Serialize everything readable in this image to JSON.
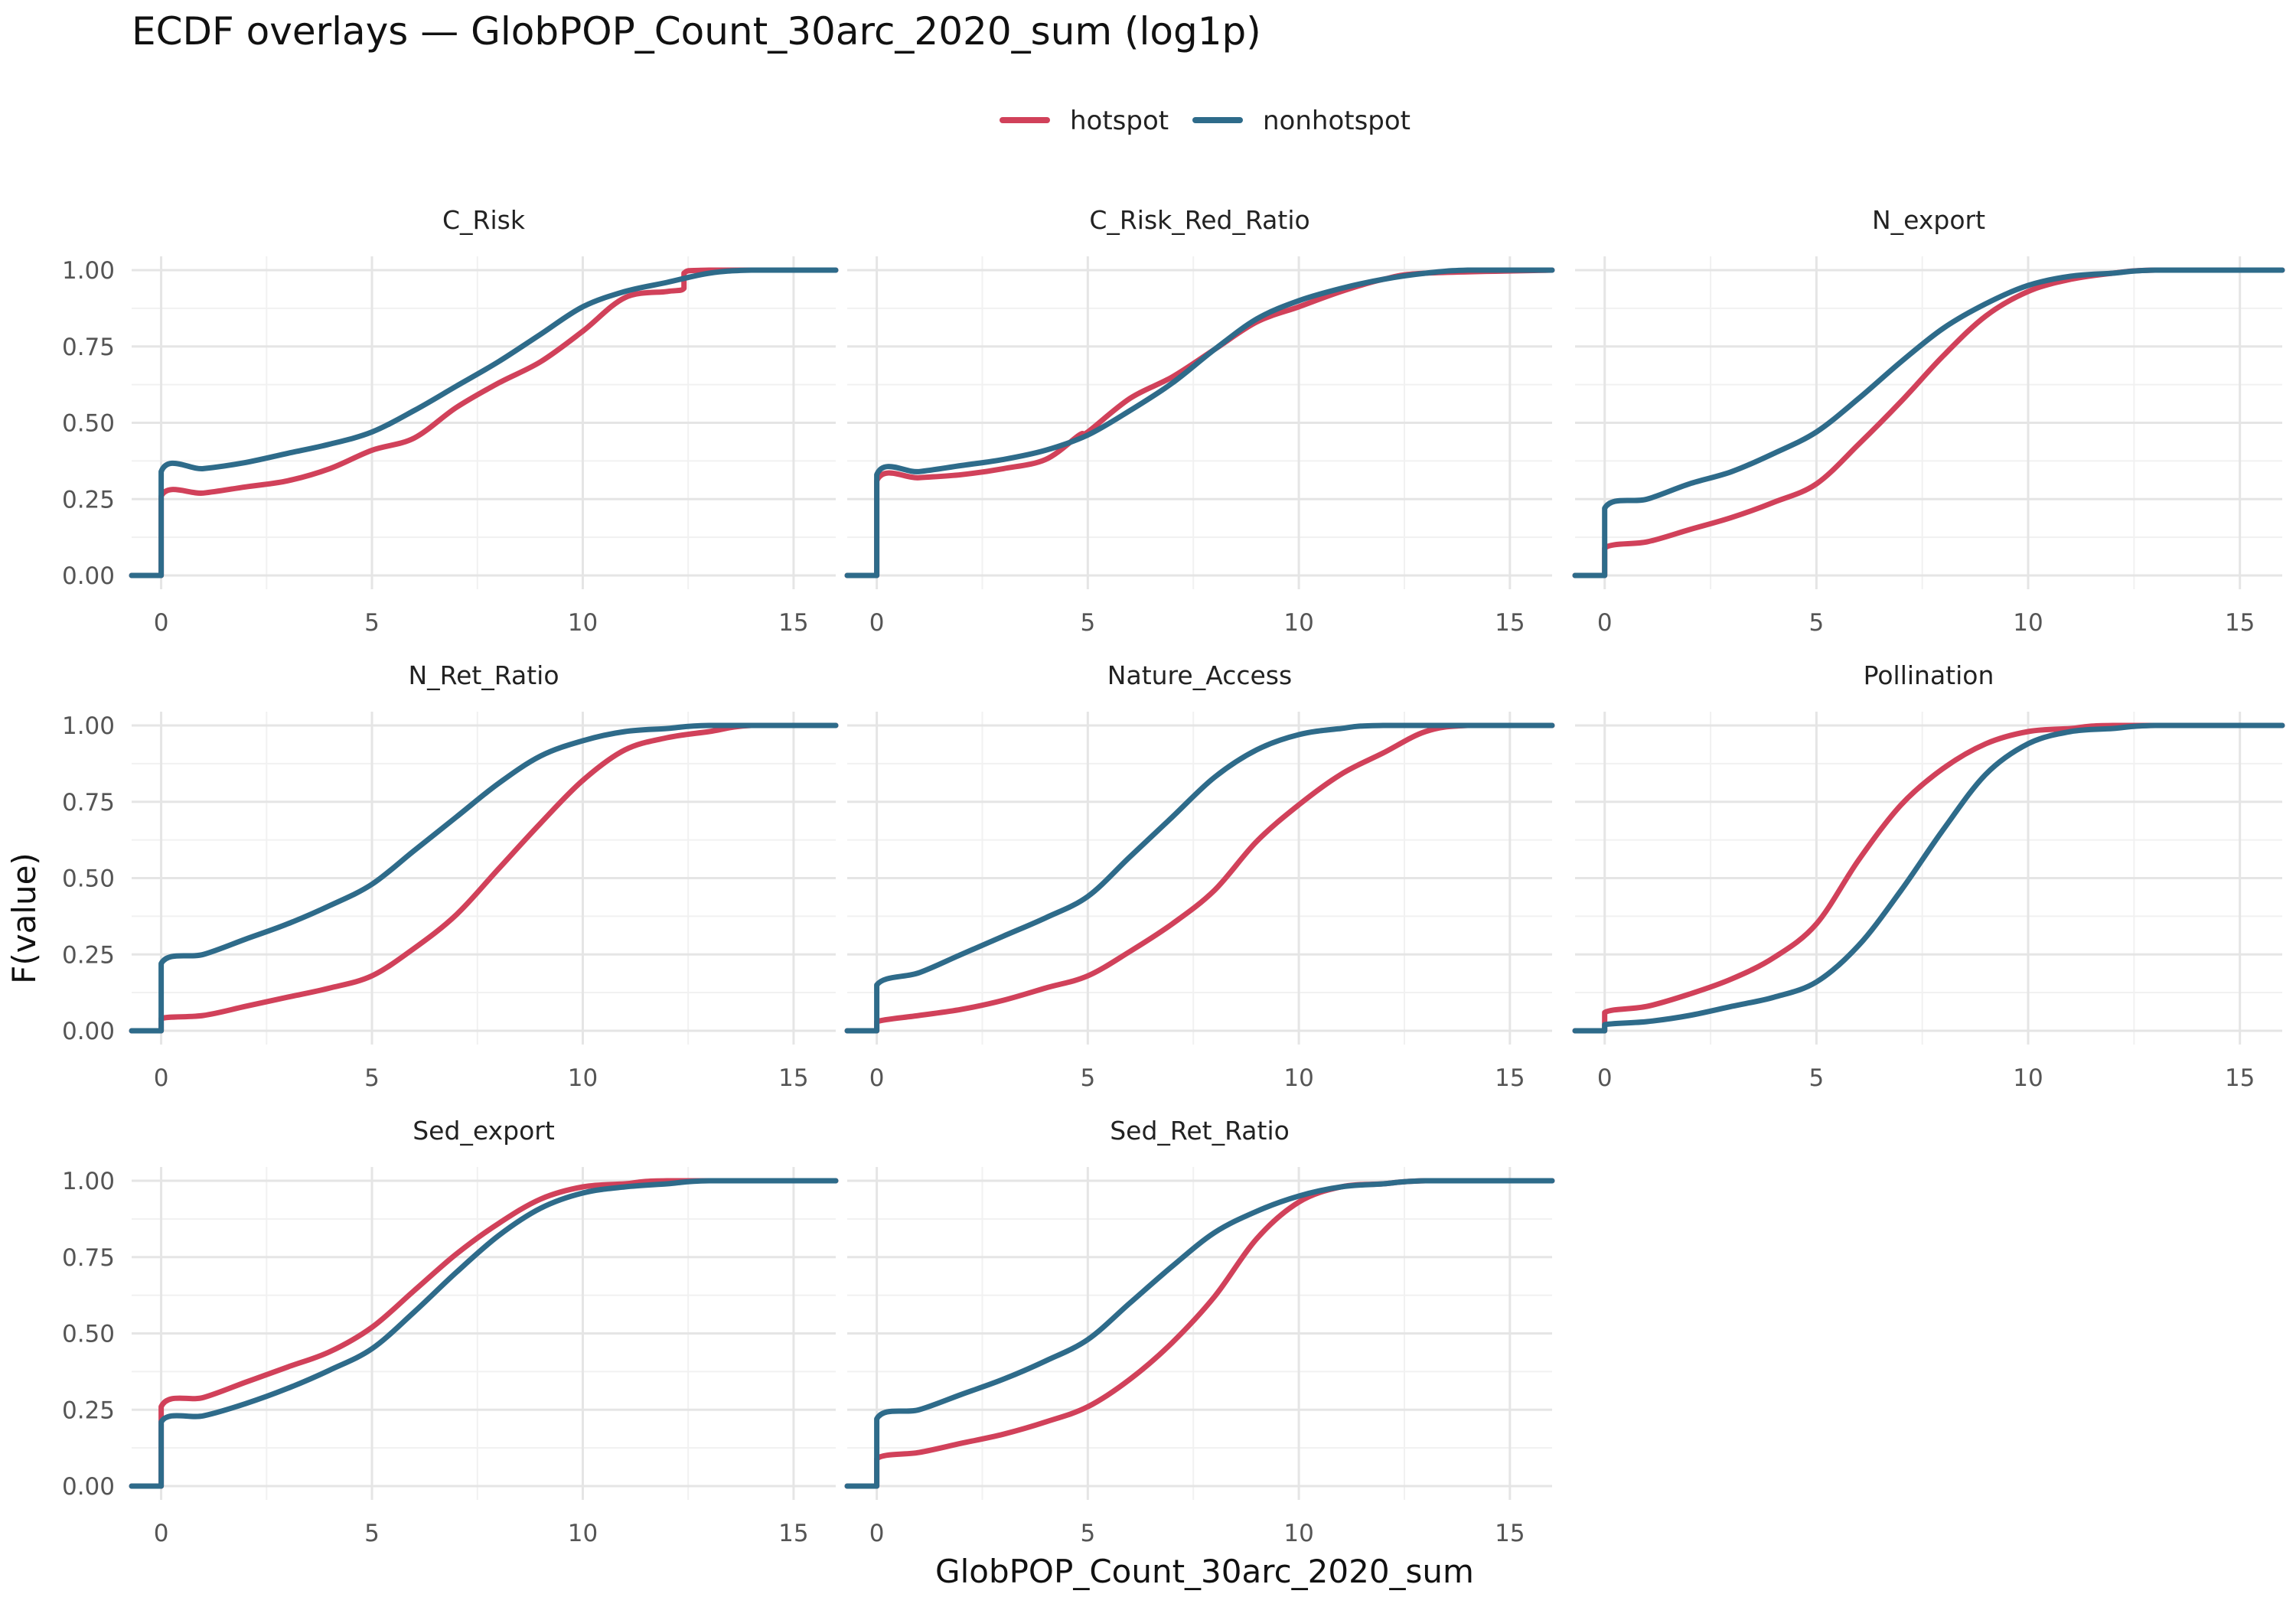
{
  "chart_data": {
    "type": "line",
    "title": "ECDF overlays — GlobPOP_Count_30arc_2020_sum (log1p)",
    "xlabel": "GlobPOP_Count_30arc_2020_sum",
    "ylabel": "F(value)",
    "xlim": [
      -0.7,
      16
    ],
    "ylim": [
      0,
      1
    ],
    "x_ticks": [
      0,
      5,
      10,
      15
    ],
    "y_ticks": [
      "0.00",
      "0.25",
      "0.50",
      "0.75",
      "1.00"
    ],
    "grid": true,
    "legend_position": "top",
    "series_names": [
      "hotspot",
      "nonhotspot"
    ],
    "colors": {
      "hotspot": "#d1415a",
      "nonhotspot": "#2e6b8a"
    },
    "panels": [
      {
        "name": "C_Risk",
        "hotspot": [
          [
            -0.7,
            0
          ],
          [
            0,
            0
          ],
          [
            0,
            0.26
          ],
          [
            1,
            0.27
          ],
          [
            2,
            0.29
          ],
          [
            3,
            0.31
          ],
          [
            4,
            0.35
          ],
          [
            5,
            0.41
          ],
          [
            6,
            0.45
          ],
          [
            7,
            0.55
          ],
          [
            8,
            0.63
          ],
          [
            9,
            0.7
          ],
          [
            10,
            0.8
          ],
          [
            11,
            0.91
          ],
          [
            12,
            0.93
          ],
          [
            12.4,
            0.94
          ],
          [
            12.4,
            0.99
          ],
          [
            13,
            1
          ],
          [
            16,
            1
          ]
        ],
        "nonhotspot": [
          [
            -0.7,
            0
          ],
          [
            0,
            0
          ],
          [
            0,
            0.34
          ],
          [
            1,
            0.35
          ],
          [
            2,
            0.37
          ],
          [
            3,
            0.4
          ],
          [
            4,
            0.43
          ],
          [
            5,
            0.47
          ],
          [
            6,
            0.54
          ],
          [
            7,
            0.62
          ],
          [
            8,
            0.7
          ],
          [
            9,
            0.79
          ],
          [
            10,
            0.88
          ],
          [
            11,
            0.93
          ],
          [
            12,
            0.96
          ],
          [
            13,
            0.99
          ],
          [
            14,
            1
          ],
          [
            16,
            1
          ]
        ]
      },
      {
        "name": "C_Risk_Red_Ratio",
        "hotspot": [
          [
            -0.7,
            0
          ],
          [
            0,
            0
          ],
          [
            0,
            0.31
          ],
          [
            1,
            0.32
          ],
          [
            2,
            0.33
          ],
          [
            3,
            0.35
          ],
          [
            4,
            0.38
          ],
          [
            4.8,
            0.46
          ],
          [
            5,
            0.47
          ],
          [
            6,
            0.58
          ],
          [
            7,
            0.65
          ],
          [
            8,
            0.74
          ],
          [
            9,
            0.83
          ],
          [
            10,
            0.88
          ],
          [
            11,
            0.93
          ],
          [
            12,
            0.97
          ],
          [
            13,
            0.99
          ],
          [
            16,
            1
          ]
        ],
        "nonhotspot": [
          [
            -0.7,
            0
          ],
          [
            0,
            0
          ],
          [
            0,
            0.33
          ],
          [
            1,
            0.34
          ],
          [
            2,
            0.36
          ],
          [
            3,
            0.38
          ],
          [
            4,
            0.41
          ],
          [
            5,
            0.46
          ],
          [
            6,
            0.54
          ],
          [
            7,
            0.63
          ],
          [
            8,
            0.74
          ],
          [
            9,
            0.84
          ],
          [
            10,
            0.9
          ],
          [
            11,
            0.94
          ],
          [
            12,
            0.97
          ],
          [
            13,
            0.99
          ],
          [
            14,
            1
          ],
          [
            16,
            1
          ]
        ]
      },
      {
        "name": "N_export",
        "hotspot": [
          [
            -0.7,
            0
          ],
          [
            0,
            0
          ],
          [
            0,
            0.09
          ],
          [
            1,
            0.11
          ],
          [
            2,
            0.15
          ],
          [
            3,
            0.19
          ],
          [
            4,
            0.24
          ],
          [
            5,
            0.3
          ],
          [
            6,
            0.43
          ],
          [
            7,
            0.57
          ],
          [
            8,
            0.72
          ],
          [
            9,
            0.85
          ],
          [
            10,
            0.93
          ],
          [
            11,
            0.97
          ],
          [
            12,
            0.99
          ],
          [
            13,
            1
          ],
          [
            16,
            1
          ]
        ],
        "nonhotspot": [
          [
            -0.7,
            0
          ],
          [
            0,
            0
          ],
          [
            0,
            0.22
          ],
          [
            1,
            0.25
          ],
          [
            2,
            0.3
          ],
          [
            3,
            0.34
          ],
          [
            4,
            0.4
          ],
          [
            5,
            0.47
          ],
          [
            6,
            0.58
          ],
          [
            7,
            0.7
          ],
          [
            8,
            0.81
          ],
          [
            9,
            0.89
          ],
          [
            10,
            0.95
          ],
          [
            11,
            0.98
          ],
          [
            12,
            0.99
          ],
          [
            13,
            1
          ],
          [
            16,
            1
          ]
        ]
      },
      {
        "name": "N_Ret_Ratio",
        "hotspot": [
          [
            -0.7,
            0
          ],
          [
            0,
            0
          ],
          [
            0,
            0.04
          ],
          [
            1,
            0.05
          ],
          [
            2,
            0.08
          ],
          [
            3,
            0.11
          ],
          [
            4,
            0.14
          ],
          [
            5,
            0.18
          ],
          [
            6,
            0.27
          ],
          [
            7,
            0.38
          ],
          [
            8,
            0.53
          ],
          [
            9,
            0.68
          ],
          [
            10,
            0.82
          ],
          [
            11,
            0.92
          ],
          [
            12,
            0.96
          ],
          [
            13,
            0.98
          ],
          [
            14,
            1
          ],
          [
            16,
            1
          ]
        ],
        "nonhotspot": [
          [
            -0.7,
            0
          ],
          [
            0,
            0
          ],
          [
            0,
            0.22
          ],
          [
            1,
            0.25
          ],
          [
            2,
            0.3
          ],
          [
            3,
            0.35
          ],
          [
            4,
            0.41
          ],
          [
            5,
            0.48
          ],
          [
            6,
            0.59
          ],
          [
            7,
            0.7
          ],
          [
            8,
            0.81
          ],
          [
            9,
            0.9
          ],
          [
            10,
            0.95
          ],
          [
            11,
            0.98
          ],
          [
            12,
            0.99
          ],
          [
            13,
            1
          ],
          [
            16,
            1
          ]
        ]
      },
      {
        "name": "Nature_Access",
        "hotspot": [
          [
            -0.7,
            0
          ],
          [
            0,
            0
          ],
          [
            0,
            0.03
          ],
          [
            1,
            0.05
          ],
          [
            2,
            0.07
          ],
          [
            3,
            0.1
          ],
          [
            4,
            0.14
          ],
          [
            5,
            0.18
          ],
          [
            6,
            0.26
          ],
          [
            7,
            0.35
          ],
          [
            8,
            0.46
          ],
          [
            9,
            0.62
          ],
          [
            10,
            0.74
          ],
          [
            11,
            0.84
          ],
          [
            12,
            0.91
          ],
          [
            13,
            0.98
          ],
          [
            14,
            1
          ],
          [
            16,
            1
          ]
        ],
        "nonhotspot": [
          [
            -0.7,
            0
          ],
          [
            0,
            0
          ],
          [
            0,
            0.15
          ],
          [
            1,
            0.19
          ],
          [
            2,
            0.25
          ],
          [
            3,
            0.31
          ],
          [
            4,
            0.37
          ],
          [
            5,
            0.44
          ],
          [
            6,
            0.57
          ],
          [
            7,
            0.7
          ],
          [
            8,
            0.83
          ],
          [
            9,
            0.92
          ],
          [
            10,
            0.97
          ],
          [
            11,
            0.99
          ],
          [
            12,
            1
          ],
          [
            16,
            1
          ]
        ]
      },
      {
        "name": "Pollination",
        "hotspot": [
          [
            -0.7,
            0
          ],
          [
            0,
            0
          ],
          [
            0,
            0.06
          ],
          [
            1,
            0.08
          ],
          [
            2,
            0.12
          ],
          [
            3,
            0.17
          ],
          [
            4,
            0.24
          ],
          [
            5,
            0.35
          ],
          [
            6,
            0.56
          ],
          [
            7,
            0.74
          ],
          [
            8,
            0.86
          ],
          [
            9,
            0.94
          ],
          [
            10,
            0.98
          ],
          [
            11,
            0.99
          ],
          [
            12,
            1
          ],
          [
            16,
            1
          ]
        ],
        "nonhotspot": [
          [
            -0.7,
            0
          ],
          [
            0,
            0
          ],
          [
            0,
            0.02
          ],
          [
            1,
            0.03
          ],
          [
            2,
            0.05
          ],
          [
            3,
            0.08
          ],
          [
            4,
            0.11
          ],
          [
            5,
            0.16
          ],
          [
            6,
            0.28
          ],
          [
            7,
            0.46
          ],
          [
            8,
            0.66
          ],
          [
            9,
            0.84
          ],
          [
            10,
            0.94
          ],
          [
            11,
            0.98
          ],
          [
            12,
            0.99
          ],
          [
            13,
            1
          ],
          [
            16,
            1
          ]
        ]
      },
      {
        "name": "Sed_export",
        "hotspot": [
          [
            -0.7,
            0
          ],
          [
            0,
            0
          ],
          [
            0,
            0.26
          ],
          [
            1,
            0.29
          ],
          [
            2,
            0.34
          ],
          [
            3,
            0.39
          ],
          [
            4,
            0.44
          ],
          [
            5,
            0.52
          ],
          [
            6,
            0.64
          ],
          [
            7,
            0.76
          ],
          [
            8,
            0.86
          ],
          [
            9,
            0.94
          ],
          [
            10,
            0.98
          ],
          [
            11,
            0.99
          ],
          [
            12,
            1
          ],
          [
            16,
            1
          ]
        ],
        "nonhotspot": [
          [
            -0.7,
            0
          ],
          [
            0,
            0
          ],
          [
            0,
            0.21
          ],
          [
            1,
            0.23
          ],
          [
            2,
            0.27
          ],
          [
            3,
            0.32
          ],
          [
            4,
            0.38
          ],
          [
            5,
            0.45
          ],
          [
            6,
            0.57
          ],
          [
            7,
            0.7
          ],
          [
            8,
            0.82
          ],
          [
            9,
            0.91
          ],
          [
            10,
            0.96
          ],
          [
            11,
            0.98
          ],
          [
            12,
            0.99
          ],
          [
            13,
            1
          ],
          [
            16,
            1
          ]
        ]
      },
      {
        "name": "Sed_Ret_Ratio",
        "hotspot": [
          [
            -0.7,
            0
          ],
          [
            0,
            0
          ],
          [
            0,
            0.09
          ],
          [
            1,
            0.11
          ],
          [
            2,
            0.14
          ],
          [
            3,
            0.17
          ],
          [
            4,
            0.21
          ],
          [
            5,
            0.26
          ],
          [
            6,
            0.35
          ],
          [
            7,
            0.47
          ],
          [
            8,
            0.62
          ],
          [
            9,
            0.81
          ],
          [
            10,
            0.93
          ],
          [
            11,
            0.98
          ],
          [
            12,
            0.99
          ],
          [
            13,
            1
          ],
          [
            16,
            1
          ]
        ],
        "nonhotspot": [
          [
            -0.7,
            0
          ],
          [
            0,
            0
          ],
          [
            0,
            0.22
          ],
          [
            1,
            0.25
          ],
          [
            2,
            0.3
          ],
          [
            3,
            0.35
          ],
          [
            4,
            0.41
          ],
          [
            5,
            0.48
          ],
          [
            6,
            0.6
          ],
          [
            7,
            0.72
          ],
          [
            8,
            0.83
          ],
          [
            9,
            0.9
          ],
          [
            10,
            0.95
          ],
          [
            11,
            0.98
          ],
          [
            12,
            0.99
          ],
          [
            13,
            1
          ],
          [
            16,
            1
          ]
        ]
      }
    ]
  }
}
